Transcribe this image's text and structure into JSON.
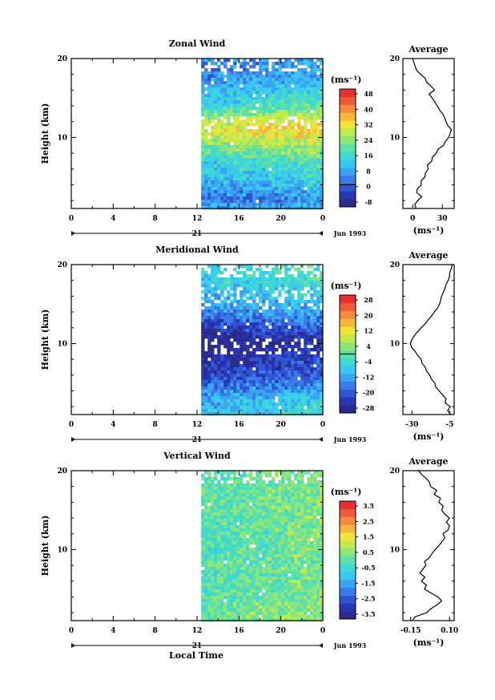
{
  "figure": {
    "bottom_xlabel": "Local Time"
  },
  "chart_data": [
    {
      "type": "heatmap",
      "title": "Zonal Wind",
      "ylabel": "Height (km)",
      "xlim": [
        0,
        24
      ],
      "ylim": [
        1,
        20
      ],
      "xticks": [
        "0",
        "4",
        "8",
        "12",
        "16",
        "20",
        "0"
      ],
      "yticks": [
        {
          "v": 10,
          "label": "10"
        },
        {
          "v": 20,
          "label": "20"
        }
      ],
      "date_label": "21",
      "month_label": "Jun 1993",
      "data_start_hour": 12.4,
      "colorbar": {
        "unit_label": "(ms⁻¹)",
        "ticks": [
          "48",
          "40",
          "32",
          "24",
          "16",
          "8",
          "0",
          "-8"
        ],
        "vmin": -12,
        "vmax": 52,
        "zero_line": 0,
        "colors": [
          "#2b2b8c",
          "#2836b4",
          "#2f55d4",
          "#3a7be8",
          "#3aa4f4",
          "#38c8f2",
          "#3ed9d2",
          "#5ee0a6",
          "#8ee67a",
          "#c2ea4a",
          "#f0e43a",
          "#f8b63a",
          "#f48a3c",
          "#ee5a3a",
          "#e4302e"
        ]
      },
      "field_profile": [
        {
          "h": 1,
          "v": 10
        },
        {
          "h": 2,
          "v": 4
        },
        {
          "h": 3,
          "v": 6
        },
        {
          "h": 4,
          "v": 10
        },
        {
          "h": 5,
          "v": 12
        },
        {
          "h": 6,
          "v": 14
        },
        {
          "h": 7,
          "v": 17
        },
        {
          "h": 8,
          "v": 21
        },
        {
          "h": 9,
          "v": 25
        },
        {
          "h": 10,
          "v": 30
        },
        {
          "h": 11,
          "v": 33
        },
        {
          "h": 12,
          "v": 30
        },
        {
          "h": 13,
          "v": 24
        },
        {
          "h": 14,
          "v": 18
        },
        {
          "h": 15,
          "v": 13
        },
        {
          "h": 16,
          "v": 12
        },
        {
          "h": 17,
          "v": 8
        },
        {
          "h": 18,
          "v": 6
        },
        {
          "h": 19,
          "v": 6
        },
        {
          "h": 20,
          "v": 6
        }
      ],
      "average": {
        "title": "Average",
        "xlabel": "(ms⁻¹)",
        "xlim": [
          -10,
          42
        ],
        "xticks": [
          {
            "v": 0,
            "label": "0"
          },
          {
            "v": 30,
            "label": "30"
          }
        ],
        "yticks": [
          {
            "v": 10,
            "label": "10"
          },
          {
            "v": 20,
            "label": "20"
          }
        ],
        "profile": [
          {
            "h": 1.0,
            "v": 3
          },
          {
            "h": 1.5,
            "v": 2
          },
          {
            "h": 2.0,
            "v": 5
          },
          {
            "h": 2.5,
            "v": 9
          },
          {
            "h": 3.0,
            "v": 4
          },
          {
            "h": 3.5,
            "v": 5
          },
          {
            "h": 4.0,
            "v": 9
          },
          {
            "h": 4.5,
            "v": 8
          },
          {
            "h": 5.0,
            "v": 12
          },
          {
            "h": 5.5,
            "v": 13
          },
          {
            "h": 6.0,
            "v": 16
          },
          {
            "h": 6.5,
            "v": 15
          },
          {
            "h": 7.0,
            "v": 19
          },
          {
            "h": 7.5,
            "v": 20
          },
          {
            "h": 8.0,
            "v": 24
          },
          {
            "h": 8.5,
            "v": 26
          },
          {
            "h": 9.0,
            "v": 31
          },
          {
            "h": 9.5,
            "v": 33
          },
          {
            "h": 10.0,
            "v": 36
          },
          {
            "h": 10.5,
            "v": 38
          },
          {
            "h": 11.0,
            "v": 39
          },
          {
            "h": 11.5,
            "v": 36
          },
          {
            "h": 12.0,
            "v": 34
          },
          {
            "h": 12.5,
            "v": 32
          },
          {
            "h": 13.0,
            "v": 30
          },
          {
            "h": 13.5,
            "v": 27
          },
          {
            "h": 14.0,
            "v": 25
          },
          {
            "h": 14.5,
            "v": 22
          },
          {
            "h": 15.0,
            "v": 20
          },
          {
            "h": 15.5,
            "v": 17
          },
          {
            "h": 16.0,
            "v": 22
          },
          {
            "h": 16.5,
            "v": 18
          },
          {
            "h": 17.0,
            "v": 14
          },
          {
            "h": 17.5,
            "v": 12
          },
          {
            "h": 18.0,
            "v": 8
          },
          {
            "h": 18.5,
            "v": 4
          },
          {
            "h": 19.0,
            "v": 2
          },
          {
            "h": 19.5,
            "v": 1
          },
          {
            "h": 20.0,
            "v": 0
          }
        ]
      }
    },
    {
      "type": "heatmap",
      "title": "Meridional Wind",
      "ylabel": "Height (km)",
      "xlim": [
        0,
        24
      ],
      "ylim": [
        1,
        20
      ],
      "xticks": [
        "0",
        "4",
        "8",
        "12",
        "16",
        "20",
        "0"
      ],
      "yticks": [
        {
          "v": 10,
          "label": "10"
        },
        {
          "v": 20,
          "label": "20"
        }
      ],
      "date_label": "21",
      "month_label": "Jun 1993",
      "data_start_hour": 12.4,
      "colorbar": {
        "unit_label": "(ms⁻¹)",
        "ticks": [
          "28",
          "20",
          "12",
          "4",
          "-4",
          "-12",
          "-20",
          "-28"
        ],
        "vmin": -32,
        "vmax": 32,
        "zero_line": 0,
        "colors": [
          "#2b2b8c",
          "#2836b4",
          "#2f55d4",
          "#3a7be8",
          "#3aa4f4",
          "#38c8f2",
          "#3ed9d2",
          "#5ee0a6",
          "#8ee67a",
          "#c2ea4a",
          "#f0e43a",
          "#f8b63a",
          "#f48a3c",
          "#ee5a3a",
          "#e4302e"
        ]
      },
      "field_profile": [
        {
          "h": 1,
          "v": -6
        },
        {
          "h": 2,
          "v": -8
        },
        {
          "h": 3,
          "v": -10
        },
        {
          "h": 4,
          "v": -14
        },
        {
          "h": 5,
          "v": -18
        },
        {
          "h": 6,
          "v": -22
        },
        {
          "h": 7,
          "v": -24
        },
        {
          "h": 8,
          "v": -26
        },
        {
          "h": 9,
          "v": -28
        },
        {
          "h": 10,
          "v": -30
        },
        {
          "h": 11,
          "v": -27
        },
        {
          "h": 12,
          "v": -22
        },
        {
          "h": 13,
          "v": -18
        },
        {
          "h": 14,
          "v": -14
        },
        {
          "h": 15,
          "v": -11
        },
        {
          "h": 16,
          "v": -9
        },
        {
          "h": 17,
          "v": -7
        },
        {
          "h": 18,
          "v": -5
        },
        {
          "h": 19,
          "v": -4
        },
        {
          "h": 20,
          "v": -3
        }
      ],
      "average": {
        "title": "Average",
        "xlabel": "(ms⁻¹)",
        "xlim": [
          -36,
          -2
        ],
        "xticks": [
          {
            "v": -30,
            "label": "-30"
          },
          {
            "v": -5,
            "label": "-5"
          }
        ],
        "yticks": [
          {
            "v": 10,
            "label": "10"
          },
          {
            "v": 20,
            "label": "20"
          }
        ],
        "profile": [
          {
            "h": 1.0,
            "v": -4
          },
          {
            "h": 1.5,
            "v": -6
          },
          {
            "h": 2.0,
            "v": -5
          },
          {
            "h": 2.5,
            "v": -8
          },
          {
            "h": 3.0,
            "v": -7
          },
          {
            "h": 3.5,
            "v": -10
          },
          {
            "h": 4.0,
            "v": -12
          },
          {
            "h": 4.5,
            "v": -14
          },
          {
            "h": 5.0,
            "v": -15
          },
          {
            "h": 5.5,
            "v": -17
          },
          {
            "h": 6.0,
            "v": -18
          },
          {
            "h": 6.5,
            "v": -20
          },
          {
            "h": 7.0,
            "v": -21
          },
          {
            "h": 7.5,
            "v": -23
          },
          {
            "h": 8.0,
            "v": -24
          },
          {
            "h": 8.5,
            "v": -26
          },
          {
            "h": 9.0,
            "v": -28
          },
          {
            "h": 9.5,
            "v": -30
          },
          {
            "h": 10.0,
            "v": -31
          },
          {
            "h": 10.5,
            "v": -30
          },
          {
            "h": 11.0,
            "v": -28
          },
          {
            "h": 11.5,
            "v": -26
          },
          {
            "h": 12.0,
            "v": -24
          },
          {
            "h": 12.5,
            "v": -21
          },
          {
            "h": 13.0,
            "v": -19
          },
          {
            "h": 13.5,
            "v": -17
          },
          {
            "h": 14.0,
            "v": -15
          },
          {
            "h": 14.5,
            "v": -13
          },
          {
            "h": 15.0,
            "v": -12
          },
          {
            "h": 15.5,
            "v": -11
          },
          {
            "h": 16.0,
            "v": -10
          },
          {
            "h": 16.5,
            "v": -9
          },
          {
            "h": 17.0,
            "v": -8
          },
          {
            "h": 17.5,
            "v": -7
          },
          {
            "h": 18.0,
            "v": -6
          },
          {
            "h": 18.5,
            "v": -5
          },
          {
            "h": 19.0,
            "v": -5
          },
          {
            "h": 19.5,
            "v": -4
          },
          {
            "h": 20.0,
            "v": -3
          }
        ]
      }
    },
    {
      "type": "heatmap",
      "title": "Vertical Wind",
      "ylabel": "Height (km)",
      "xlim": [
        0,
        24
      ],
      "ylim": [
        1,
        20
      ],
      "xticks": [
        "0",
        "4",
        "8",
        "12",
        "16",
        "20",
        "0"
      ],
      "yticks": [
        {
          "v": 10,
          "label": "10"
        },
        {
          "v": 20,
          "label": "20"
        }
      ],
      "date_label": "21",
      "month_label": "Jun 1993",
      "data_start_hour": 12.4,
      "colorbar": {
        "unit_label": "(ms⁻¹)",
        "ticks": [
          "3.5",
          "2.5",
          "1.5",
          "0.5",
          "-0.5",
          "-1.5",
          "-2.5",
          "-3.5"
        ],
        "vmin": -4,
        "vmax": 4,
        "zero_line": null,
        "colors": [
          "#2b2b8c",
          "#2836b4",
          "#2f55d4",
          "#3a7be8",
          "#3aa4f4",
          "#38c8f2",
          "#3ed9d2",
          "#5ee0a6",
          "#8ee67a",
          "#c2ea4a",
          "#f0e43a",
          "#f8b63a",
          "#f48a3c",
          "#ee5a3a",
          "#e4302e"
        ]
      },
      "field_profile": [
        {
          "h": 1,
          "v": 0.3
        },
        {
          "h": 2,
          "v": 0.4
        },
        {
          "h": 3,
          "v": 0.3
        },
        {
          "h": 4,
          "v": 0.2
        },
        {
          "h": 5,
          "v": 0.1
        },
        {
          "h": 6,
          "v": 0.1
        },
        {
          "h": 7,
          "v": 0.0
        },
        {
          "h": 8,
          "v": 0.1
        },
        {
          "h": 9,
          "v": 0.1
        },
        {
          "h": 10,
          "v": 0.0
        },
        {
          "h": 11,
          "v": 0.1
        },
        {
          "h": 12,
          "v": 0.2
        },
        {
          "h": 13,
          "v": 0.1
        },
        {
          "h": 14,
          "v": 0.1
        },
        {
          "h": 15,
          "v": 0.2
        },
        {
          "h": 16,
          "v": 0.1
        },
        {
          "h": 17,
          "v": 0.2
        },
        {
          "h": 18,
          "v": 0.1
        },
        {
          "h": 19,
          "v": 0.2
        },
        {
          "h": 20,
          "v": 0.1
        }
      ],
      "average": {
        "title": "Average",
        "xlabel": "(ms⁻¹)",
        "xlim": [
          -0.2,
          0.13
        ],
        "xticks": [
          {
            "v": -0.15,
            "label": "-0.15"
          },
          {
            "v": 0.1,
            "label": "0.10"
          }
        ],
        "yticks": [
          {
            "v": 10,
            "label": "10"
          },
          {
            "v": 20,
            "label": "20"
          }
        ],
        "profile": [
          {
            "h": 1.0,
            "v": -0.14
          },
          {
            "h": 1.5,
            "v": -0.12
          },
          {
            "h": 2.0,
            "v": -0.05
          },
          {
            "h": 2.5,
            "v": -0.02
          },
          {
            "h": 3.0,
            "v": 0.02
          },
          {
            "h": 3.5,
            "v": 0.05
          },
          {
            "h": 4.0,
            "v": 0.03
          },
          {
            "h": 4.5,
            "v": -0.02
          },
          {
            "h": 5.0,
            "v": -0.06
          },
          {
            "h": 5.5,
            "v": -0.05
          },
          {
            "h": 6.0,
            "v": -0.08
          },
          {
            "h": 6.5,
            "v": -0.06
          },
          {
            "h": 7.0,
            "v": -0.09
          },
          {
            "h": 7.5,
            "v": -0.07
          },
          {
            "h": 8.0,
            "v": -0.05
          },
          {
            "h": 8.5,
            "v": -0.06
          },
          {
            "h": 9.0,
            "v": -0.03
          },
          {
            "h": 9.5,
            "v": -0.01
          },
          {
            "h": 10.0,
            "v": 0.01
          },
          {
            "h": 10.5,
            "v": 0.03
          },
          {
            "h": 11.0,
            "v": 0.05
          },
          {
            "h": 11.5,
            "v": 0.07
          },
          {
            "h": 12.0,
            "v": 0.06
          },
          {
            "h": 12.5,
            "v": 0.09
          },
          {
            "h": 13.0,
            "v": 0.1
          },
          {
            "h": 13.5,
            "v": 0.08
          },
          {
            "h": 14.0,
            "v": 0.1
          },
          {
            "h": 14.5,
            "v": 0.07
          },
          {
            "h": 15.0,
            "v": 0.05
          },
          {
            "h": 15.5,
            "v": 0.06
          },
          {
            "h": 16.0,
            "v": 0.03
          },
          {
            "h": 16.5,
            "v": 0.04
          },
          {
            "h": 17.0,
            "v": 0.0
          },
          {
            "h": 17.5,
            "v": 0.02
          },
          {
            "h": 18.0,
            "v": -0.02
          },
          {
            "h": 18.5,
            "v": -0.03
          },
          {
            "h": 19.0,
            "v": -0.05
          },
          {
            "h": 19.5,
            "v": -0.08
          },
          {
            "h": 20.0,
            "v": -0.1
          }
        ]
      }
    }
  ]
}
